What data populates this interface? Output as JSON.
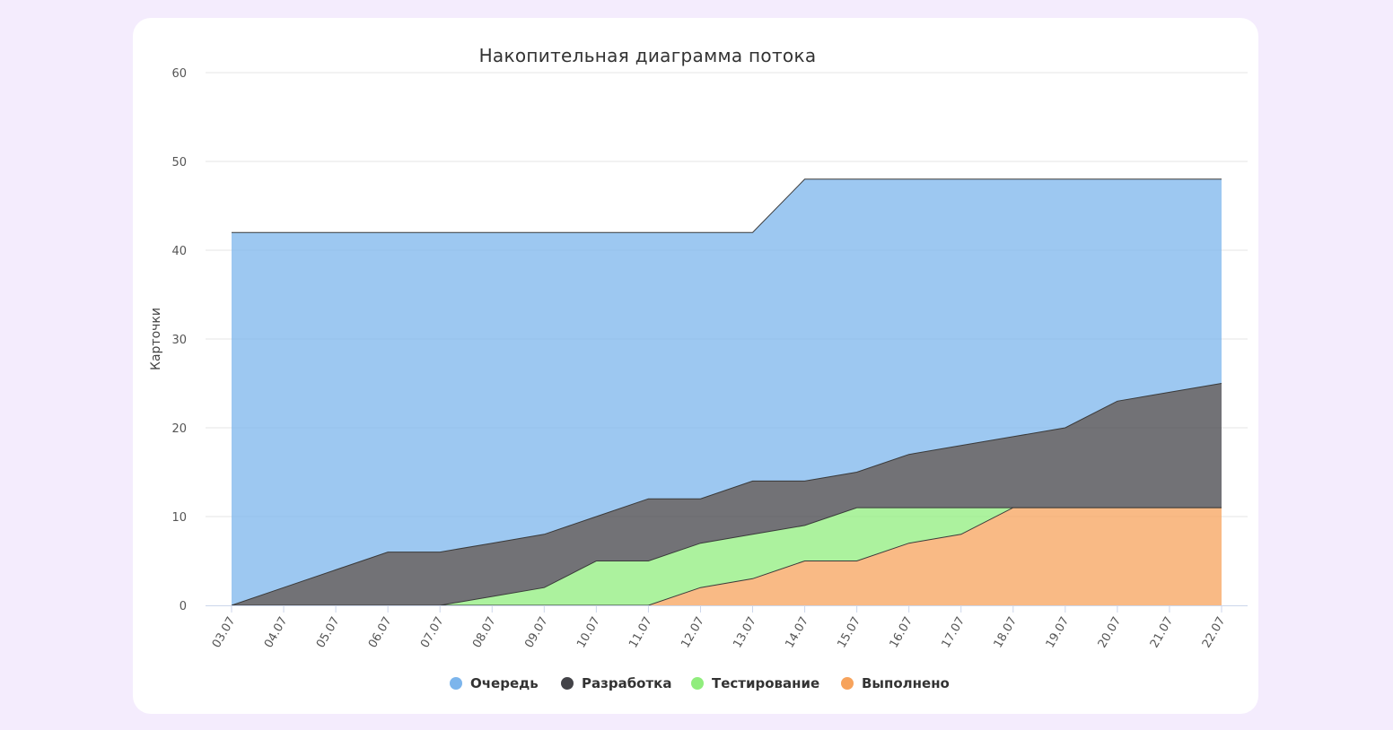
{
  "chart_data": {
    "type": "area",
    "stacked": true,
    "title": "Накопительная диаграмма потока",
    "ylabel": "Карточки",
    "xlabel": "",
    "ylim": [
      0,
      60
    ],
    "yticks": [
      0,
      10,
      20,
      30,
      40,
      50,
      60
    ],
    "grid": true,
    "legend_position": "bottom",
    "categories": [
      "03.07",
      "04.07",
      "05.07",
      "06.07",
      "07.07",
      "08.07",
      "09.07",
      "10.07",
      "11.07",
      "12.07",
      "13.07",
      "14.07",
      "15.07",
      "16.07",
      "17.07",
      "18.07",
      "19.07",
      "20.07",
      "21.07",
      "22.07"
    ],
    "series": [
      {
        "name": "Очередь",
        "color": "#7cb5ec",
        "values": [
          42,
          40,
          38,
          36,
          36,
          35,
          34,
          32,
          30,
          30,
          28,
          34,
          33,
          31,
          30,
          29,
          28,
          25,
          24,
          23
        ]
      },
      {
        "name": "Разработка",
        "color": "#434348",
        "values": [
          0,
          2,
          4,
          6,
          6,
          6,
          6,
          5,
          7,
          5,
          6,
          5,
          4,
          6,
          7,
          8,
          9,
          12,
          13,
          14
        ]
      },
      {
        "name": "Тестирование",
        "color": "#90ed7d",
        "values": [
          0,
          0,
          0,
          0,
          0,
          1,
          2,
          5,
          5,
          5,
          5,
          4,
          6,
          4,
          3,
          0,
          0,
          0,
          0,
          0
        ]
      },
      {
        "name": "Выполнено",
        "color": "#f7a35c",
        "values": [
          0,
          0,
          0,
          0,
          0,
          0,
          0,
          0,
          0,
          2,
          3,
          5,
          5,
          7,
          8,
          11,
          11,
          11,
          11,
          11
        ]
      }
    ]
  }
}
